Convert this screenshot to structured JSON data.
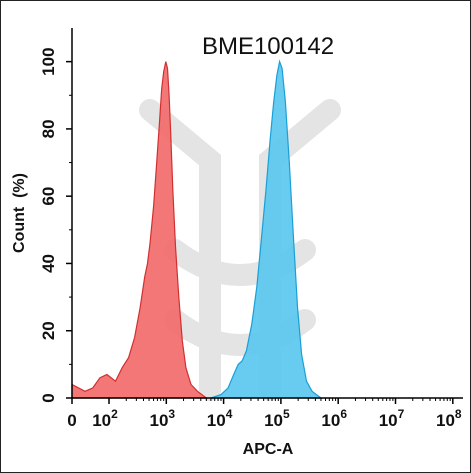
{
  "chart_data": {
    "type": "area",
    "title": "BME100142",
    "xlabel": "APC-A",
    "ylabel": "Count  (%)",
    "xscale": "biexponential (log)",
    "xlim": [
      0,
      100000000
    ],
    "ylim": [
      0,
      110
    ],
    "x_tick_labels": [
      {
        "value": 0,
        "base": "0",
        "exp": ""
      },
      {
        "value": 100,
        "base": "10",
        "exp": "2"
      },
      {
        "value": 1000,
        "base": "10",
        "exp": "3"
      },
      {
        "value": 10000,
        "base": "10",
        "exp": "4"
      },
      {
        "value": 100000,
        "base": "10",
        "exp": "5"
      },
      {
        "value": 1000000,
        "base": "10",
        "exp": "6"
      },
      {
        "value": 10000000,
        "base": "10",
        "exp": "7"
      },
      {
        "value": 100000000,
        "base": "10",
        "exp": "8"
      }
    ],
    "y_ticks": [
      0,
      20,
      40,
      60,
      80,
      100
    ],
    "series": [
      {
        "color": "#f26b6b",
        "edge_color": "#d03030",
        "points": [
          [
            0,
            4
          ],
          [
            15,
            2
          ],
          [
            35,
            3
          ],
          [
            60,
            6
          ],
          [
            90,
            7
          ],
          [
            130,
            5
          ],
          [
            170,
            9
          ],
          [
            220,
            12
          ],
          [
            280,
            18
          ],
          [
            350,
            27
          ],
          [
            420,
            36
          ],
          [
            470,
            40
          ],
          [
            520,
            46
          ],
          [
            600,
            57
          ],
          [
            680,
            70
          ],
          [
            760,
            82
          ],
          [
            830,
            92
          ],
          [
            900,
            97
          ],
          [
            980,
            100
          ],
          [
            1050,
            98
          ],
          [
            1120,
            90
          ],
          [
            1200,
            78
          ],
          [
            1300,
            62
          ],
          [
            1450,
            45
          ],
          [
            1650,
            30
          ],
          [
            1900,
            17
          ],
          [
            2200,
            9
          ],
          [
            2700,
            4
          ],
          [
            3500,
            2
          ],
          [
            5000,
            0
          ]
        ]
      },
      {
        "color": "#5ac8ef",
        "edge_color": "#1a9fd6",
        "points": [
          [
            6000,
            0
          ],
          [
            9000,
            1
          ],
          [
            12000,
            3
          ],
          [
            15000,
            7
          ],
          [
            18000,
            10
          ],
          [
            21000,
            11
          ],
          [
            25000,
            14
          ],
          [
            31000,
            22
          ],
          [
            38000,
            33
          ],
          [
            45000,
            46
          ],
          [
            55000,
            62
          ],
          [
            65000,
            77
          ],
          [
            75000,
            88
          ],
          [
            85000,
            96
          ],
          [
            95000,
            100
          ],
          [
            105000,
            98
          ],
          [
            120000,
            88
          ],
          [
            140000,
            70
          ],
          [
            165000,
            48
          ],
          [
            195000,
            27
          ],
          [
            230000,
            13
          ],
          [
            280000,
            5
          ],
          [
            350000,
            2
          ],
          [
            500000,
            0
          ]
        ]
      }
    ],
    "grid": false,
    "legend": "none"
  }
}
